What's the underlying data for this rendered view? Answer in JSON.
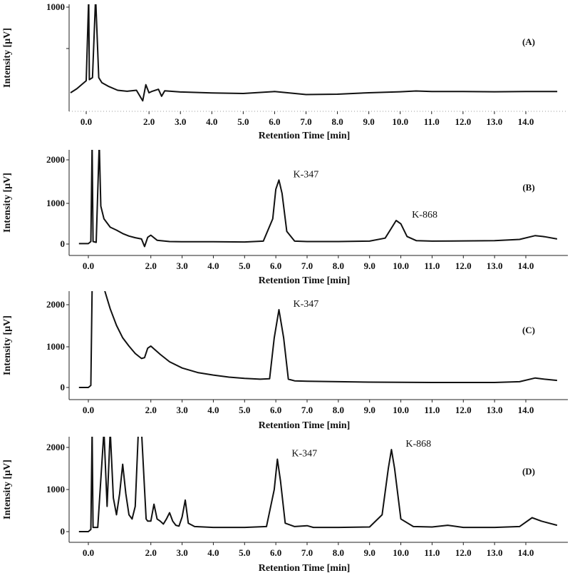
{
  "chart_data": [
    {
      "type": "line",
      "panel_label": "(A)",
      "xlabel": "Retention Time [min]",
      "ylabel": "Intensity [µV]",
      "x_ticks": [
        "0.0",
        "2.0",
        "3.0",
        "4.0",
        "5.0",
        "6.0",
        "7.0",
        "8.0",
        "9.0",
        "10.0",
        "11.0",
        "12.0",
        "13.0",
        "14.0"
      ],
      "y_ticks": [
        "1000"
      ],
      "xlim": [
        -0.5,
        15.0
      ],
      "ylim": [
        0,
        1100
      ],
      "grid": false,
      "annotations": [],
      "series": [
        {
          "x": [
            -0.5,
            -0.3,
            0.0,
            0.08,
            0.1,
            0.2,
            0.3,
            0.4,
            0.5,
            0.7,
            1.0,
            1.3,
            1.6,
            1.8,
            1.9,
            2.0,
            2.1,
            2.3,
            2.4,
            2.5,
            3.0,
            4.0,
            5.0,
            6.0,
            7.0,
            8.0,
            9.0,
            10.0,
            10.5,
            11.0,
            12.0,
            13.0,
            14.0,
            15.0
          ],
          "y": [
            150,
            190,
            270,
            1100,
            280,
            300,
            1100,
            300,
            250,
            215,
            175,
            165,
            175,
            70,
            230,
            150,
            165,
            185,
            115,
            170,
            158,
            148,
            143,
            162,
            132,
            136,
            150,
            160,
            168,
            162,
            162,
            160,
            163,
            163
          ]
        }
      ]
    },
    {
      "type": "line",
      "panel_label": "(B)",
      "xlabel": "Retention Time [min]",
      "ylabel": "Intensity [µV]",
      "x_ticks": [
        "0.0",
        "2.0",
        "3.0",
        "4.0",
        "5.0",
        "6.0",
        "7.0",
        "8.0",
        "9.0",
        "10.0",
        "11.0",
        "12.0",
        "13.0",
        "14.0"
      ],
      "y_ticks": [
        "0",
        "1000",
        "2000"
      ],
      "xlim": [
        -0.4,
        15.0
      ],
      "ylim": [
        -250,
        2400
      ],
      "grid": false,
      "annotations": [
        {
          "text": "K-347",
          "x": 6.1,
          "y": 1520
        },
        {
          "text": "K-868",
          "x": 9.9,
          "y": 560
        }
      ],
      "series": [
        {
          "x": [
            -0.3,
            0.0,
            0.08,
            0.12,
            0.15,
            0.25,
            0.35,
            0.4,
            0.5,
            0.7,
            0.9,
            1.1,
            1.3,
            1.5,
            1.7,
            1.8,
            1.9,
            2.0,
            2.2,
            2.6,
            3.0,
            4.0,
            5.0,
            5.6,
            5.9,
            6.0,
            6.1,
            6.2,
            6.35,
            6.6,
            7.0,
            8.0,
            9.0,
            9.5,
            9.7,
            9.85,
            10.0,
            10.2,
            10.5,
            11.0,
            12.0,
            13.0,
            13.8,
            14.3,
            14.6,
            15.0
          ],
          "y": [
            10,
            10,
            60,
            2400,
            60,
            40,
            2400,
            900,
            600,
            400,
            330,
            250,
            190,
            150,
            120,
            -60,
            160,
            210,
            90,
            60,
            55,
            55,
            50,
            70,
            600,
            1300,
            1520,
            1200,
            300,
            70,
            60,
            60,
            70,
            140,
            380,
            560,
            480,
            180,
            80,
            70,
            75,
            80,
            110,
            200,
            175,
            120
          ]
        }
      ]
    },
    {
      "type": "line",
      "panel_label": "(C)",
      "xlabel": "Retention Time [min]",
      "ylabel": "Intensity [µV]",
      "x_ticks": [
        "0.0",
        "2.0",
        "3.0",
        "4.0",
        "5.0",
        "6.0",
        "7.0",
        "8.0",
        "9.0",
        "10.0",
        "11.0",
        "12.0",
        "13.0",
        "14.0"
      ],
      "y_ticks": [
        "0",
        "1000",
        "2000"
      ],
      "xlim": [
        -0.4,
        15.0
      ],
      "ylim": [
        -250,
        2400
      ],
      "grid": false,
      "annotations": [
        {
          "text": "K-347",
          "x": 6.1,
          "y": 1880
        }
      ],
      "series": [
        {
          "x": [
            -0.3,
            0.0,
            0.08,
            0.12,
            0.13,
            0.5,
            0.7,
            0.9,
            1.1,
            1.3,
            1.5,
            1.7,
            1.8,
            1.9,
            2.0,
            2.3,
            2.6,
            3.0,
            3.5,
            4.0,
            4.5,
            5.0,
            5.5,
            5.8,
            5.95,
            6.1,
            6.25,
            6.4,
            6.6,
            7.0,
            8.0,
            9.0,
            10.0,
            11.0,
            12.0,
            13.0,
            13.8,
            14.3,
            14.6,
            15.0
          ],
          "y": [
            0,
            0,
            50,
            2400,
            2400,
            2400,
            1900,
            1500,
            1200,
            1000,
            820,
            700,
            720,
            950,
            1000,
            800,
            620,
            470,
            360,
            300,
            250,
            220,
            200,
            210,
            1200,
            1880,
            1200,
            200,
            160,
            150,
            140,
            130,
            125,
            120,
            120,
            120,
            140,
            230,
            200,
            170
          ]
        }
      ]
    },
    {
      "type": "line",
      "panel_label": "(D)",
      "xlabel": "Retention Time [min]",
      "ylabel": "Intensity [µV]",
      "x_ticks": [
        "0.0",
        "2.0",
        "3.0",
        "4.0",
        "5.0",
        "6.0",
        "7.0",
        "8.0",
        "9.0",
        "10.0",
        "11.0",
        "12.0",
        "13.0",
        "14.0"
      ],
      "y_ticks": [
        "0",
        "1000",
        "2000"
      ],
      "xlim": [
        -0.4,
        15.0
      ],
      "ylim": [
        -250,
        2400
      ],
      "grid": false,
      "annotations": [
        {
          "text": "K-347",
          "x": 6.05,
          "y": 1720
        },
        {
          "text": "K-868",
          "x": 9.7,
          "y": 1950
        }
      ],
      "series": [
        {
          "x": [
            -0.3,
            0.0,
            0.08,
            0.12,
            0.15,
            0.3,
            0.5,
            0.6,
            0.7,
            0.8,
            0.9,
            1.0,
            1.1,
            1.2,
            1.3,
            1.4,
            1.5,
            1.6,
            1.7,
            1.8,
            1.85,
            1.9,
            2.0,
            2.1,
            2.2,
            2.3,
            2.4,
            2.5,
            2.6,
            2.7,
            2.8,
            2.9,
            3.0,
            3.1,
            3.2,
            3.4,
            4.0,
            5.0,
            5.7,
            5.95,
            6.05,
            6.15,
            6.3,
            6.6,
            7.0,
            7.2,
            8.0,
            9.0,
            9.4,
            9.6,
            9.7,
            9.8,
            10.0,
            10.4,
            11.0,
            11.5,
            12.0,
            13.0,
            13.8,
            14.2,
            14.5,
            15.0
          ],
          "y": [
            0,
            0,
            50,
            2400,
            100,
            100,
            2400,
            600,
            2400,
            800,
            400,
            900,
            1600,
            900,
            400,
            300,
            600,
            2400,
            2400,
            1000,
            300,
            250,
            250,
            650,
            300,
            250,
            180,
            300,
            450,
            250,
            150,
            130,
            350,
            750,
            200,
            120,
            100,
            100,
            120,
            1000,
            1720,
            1200,
            200,
            120,
            140,
            100,
            100,
            110,
            400,
            1500,
            1950,
            1500,
            300,
            120,
            110,
            150,
            100,
            100,
            120,
            330,
            250,
            150
          ]
        }
      ]
    }
  ]
}
